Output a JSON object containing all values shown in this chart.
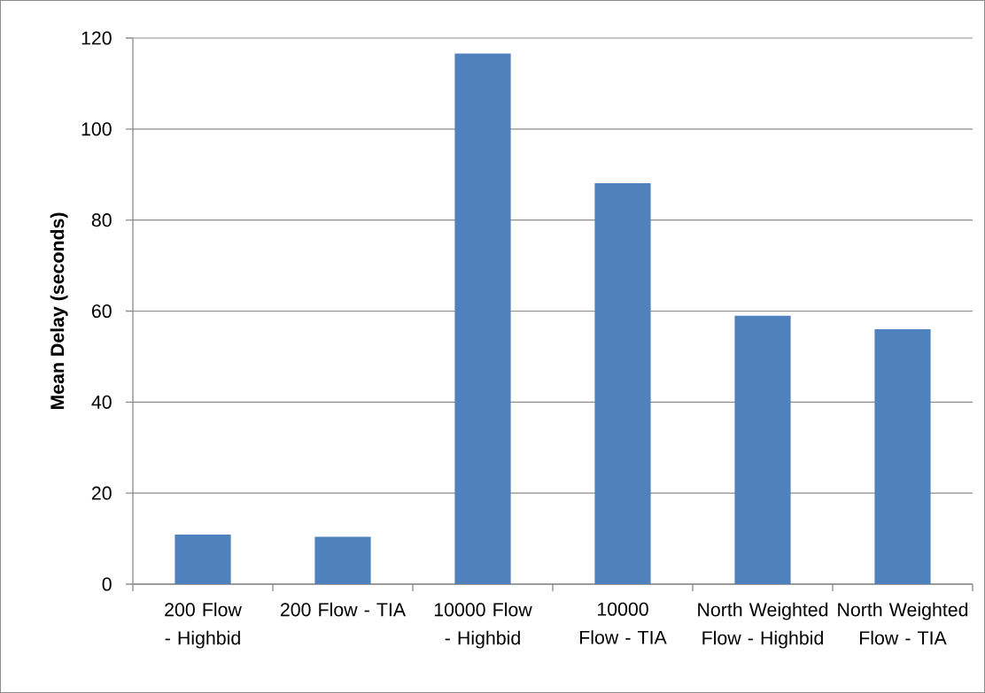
{
  "chart_data": {
    "type": "bar",
    "ylabel": "Mean Delay (seconds)",
    "categories": [
      "200 Flow - Highbid",
      "200 Flow - TIA",
      "10000 Flow - Highbid",
      "10000 Flow - TIA",
      "North Weighted Flow - Highbid",
      "North Weighted Flow - TIA"
    ],
    "values": [
      10.9,
      10.4,
      116.6,
      88.1,
      59.0,
      56.0
    ],
    "color": "#4f81bd",
    "ylim": [
      0,
      120
    ],
    "yticks": [
      0,
      20,
      40,
      60,
      80,
      100,
      120
    ],
    "grid": "y"
  }
}
